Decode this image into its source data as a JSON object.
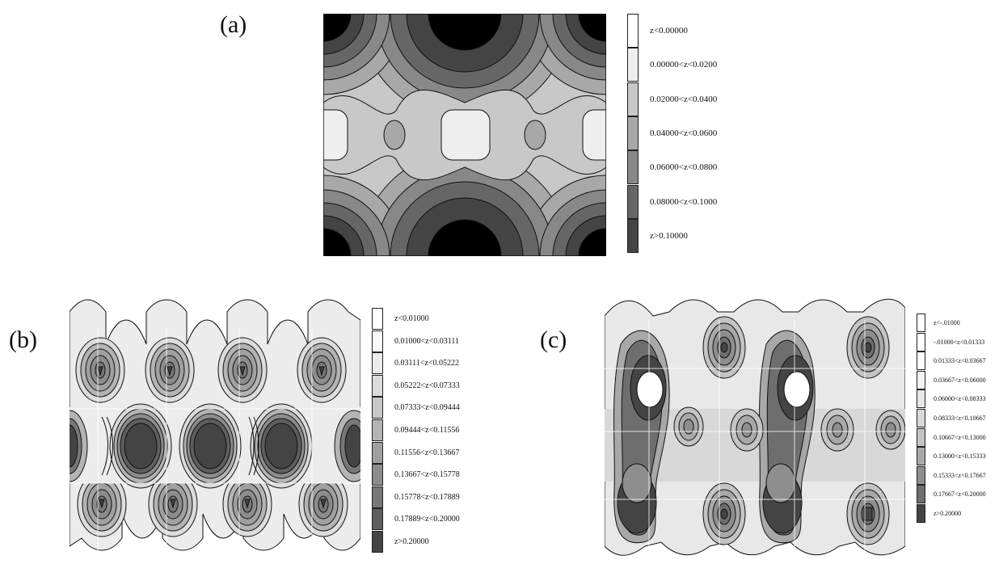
{
  "figure": {
    "panels": [
      {
        "label": "(a)",
        "legend": [
          {
            "text": "z<0.00000",
            "color": "#ffffff"
          },
          {
            "text": "0.00000<z<0.0200",
            "color": "#eeeeee"
          },
          {
            "text": "0.02000<z<0.0400",
            "color": "#c8c8c8"
          },
          {
            "text": "0.04000<z<0.0600",
            "color": "#a8a8a8"
          },
          {
            "text": "0.06000<z<0.0800",
            "color": "#888888"
          },
          {
            "text": "0.08000<z<0.1000",
            "color": "#666666"
          },
          {
            "text": "z>0.10000",
            "color": "#444444"
          }
        ]
      },
      {
        "label": "(b)",
        "legend": [
          {
            "text": "z<0.01000",
            "color": "#ffffff"
          },
          {
            "text": "0.01000<z<0.03111",
            "color": "#fafafa"
          },
          {
            "text": "0.03111<z<0.05222",
            "color": "#ececec"
          },
          {
            "text": "0.05222<z<0.07333",
            "color": "#dcdcdc"
          },
          {
            "text": "0.07333<z<0.09444",
            "color": "#c8c8c8"
          },
          {
            "text": "0.09444<z<0.11556",
            "color": "#b4b4b4"
          },
          {
            "text": "0.11556<z<0.13667",
            "color": "#a0a0a0"
          },
          {
            "text": "0.13667<z<0.15778",
            "color": "#8c8c8c"
          },
          {
            "text": "0.15778<z<0.17889",
            "color": "#787878"
          },
          {
            "text": "0.17889<z<0.20000",
            "color": "#5e5e5e"
          },
          {
            "text": "z>0.20000",
            "color": "#444444"
          }
        ]
      },
      {
        "label": "(c)",
        "legend": [
          {
            "text": "z<-.01000",
            "color": "#ffffff"
          },
          {
            "text": "-.01000<z<0.01333",
            "color": "#ffffff"
          },
          {
            "text": "0.01333<z<0.03667",
            "color": "#fcfcfc"
          },
          {
            "text": "0.03667<z<0.06000",
            "color": "#f4f4f4"
          },
          {
            "text": "0.06000<z<0.08333",
            "color": "#e8e8e8"
          },
          {
            "text": "0.08333<z<0.10667",
            "color": "#d8d8d8"
          },
          {
            "text": "0.10667<z<0.13000",
            "color": "#c4c4c4"
          },
          {
            "text": "0.13000<z<0.15333",
            "color": "#a8a8a8"
          },
          {
            "text": "0.15333<z<0.17667",
            "color": "#8e8e8e"
          },
          {
            "text": "0.17667<z<0.20000",
            "color": "#6e6e6e"
          },
          {
            "text": "z>0.20000",
            "color": "#444444"
          }
        ]
      }
    ]
  }
}
